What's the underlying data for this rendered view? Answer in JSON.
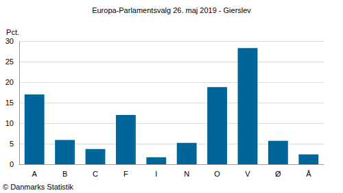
{
  "chart_data": {
    "type": "bar",
    "title": "Europa-Parlamentsvalg 26. maj 2019 - Gierslev",
    "y_label": "Pct.",
    "categories": [
      "A",
      "B",
      "C",
      "F",
      "I",
      "N",
      "O",
      "V",
      "Ø",
      "Å"
    ],
    "values": [
      17.0,
      5.9,
      3.7,
      12.0,
      1.7,
      5.2,
      18.8,
      28.3,
      5.7,
      2.4
    ],
    "color": "#006699",
    "ylim": [
      0,
      30
    ],
    "yticks": [
      0,
      5,
      10,
      15,
      20,
      25,
      30
    ],
    "grid": true,
    "annotations": [
      "© Danmarks Statistik"
    ]
  }
}
